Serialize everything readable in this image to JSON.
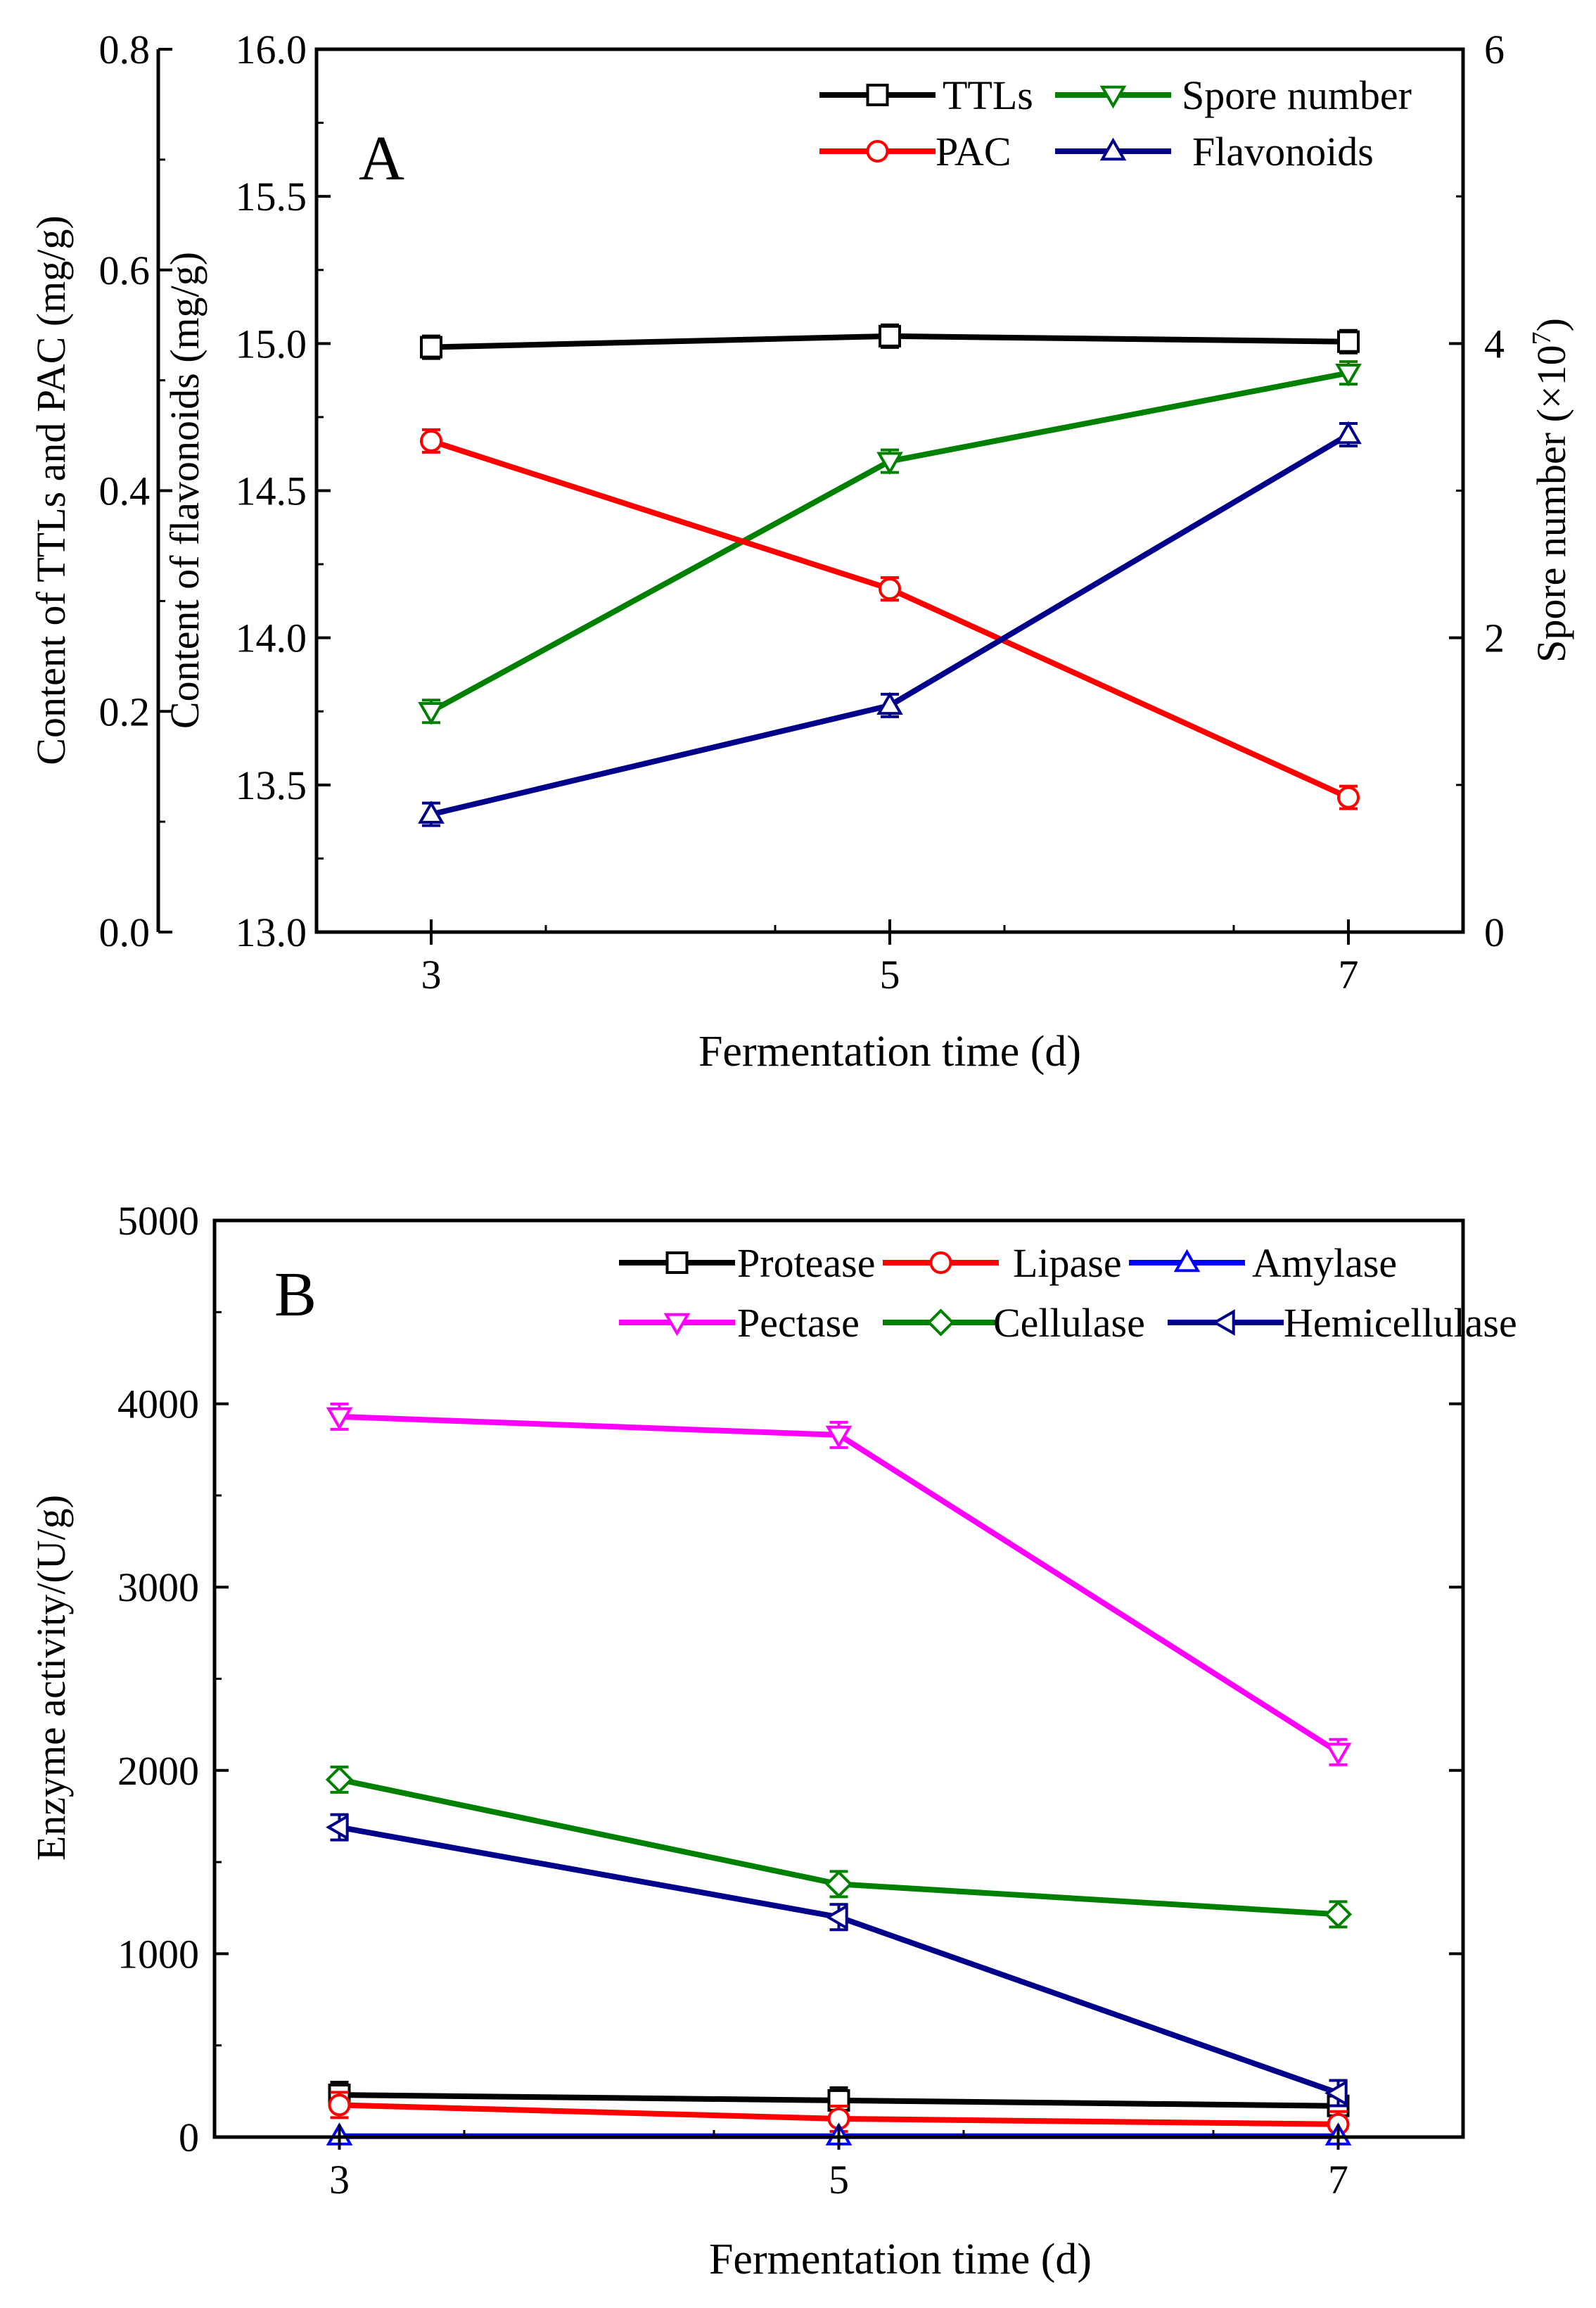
{
  "chart_data": [
    {
      "panel": "A",
      "type": "line",
      "panel_label": "A",
      "xlabel": "Fermentation time (d)",
      "x": [
        3,
        5,
        7
      ],
      "xlim": [
        2.5,
        7.5
      ],
      "xticks": [
        "3",
        "5",
        "7"
      ],
      "axes": {
        "left_outer": {
          "label": "Content of TTLs and PAC (mg/g)",
          "range": [
            0.0,
            0.8
          ],
          "ticks": [
            "0.0",
            "0.2",
            "0.4",
            "0.6",
            "0.8"
          ]
        },
        "left_inner": {
          "label": "Content of flavonoids (mg/g)",
          "range": [
            13.0,
            16.0
          ],
          "ticks": [
            "13.0",
            "13.5",
            "14.0",
            "14.5",
            "15.0",
            "15.5",
            "16.0"
          ]
        },
        "right": {
          "label": "Spore number (×10",
          "label_sup": "7",
          "label_end": ")",
          "range": [
            0,
            6
          ],
          "ticks": [
            "0",
            "2",
            "4",
            "6"
          ]
        }
      },
      "series": [
        {
          "name": "TTLs",
          "axis": "left_outer",
          "color": "#000000",
          "marker": "square",
          "values": [
            0.53,
            0.54,
            0.535
          ]
        },
        {
          "name": "Spore number",
          "axis": "right",
          "color": "#008000",
          "marker": "triangle-down",
          "values": [
            1.5,
            3.2,
            3.8
          ]
        },
        {
          "name": "PAC",
          "axis": "left_outer",
          "color": "#ff0000",
          "marker": "circle",
          "values": [
            0.445,
            0.311,
            0.122
          ]
        },
        {
          "name": "Flavonoids",
          "axis": "left_inner",
          "color": "#00008b",
          "marker": "triangle-up",
          "values": [
            13.4,
            13.77,
            14.69
          ]
        }
      ],
      "legend": [
        "TTLs",
        "Spore number",
        "PAC",
        "Flavonoids"
      ]
    },
    {
      "panel": "B",
      "type": "line",
      "panel_label": "B",
      "xlabel": "Fermentation time (d)",
      "ylabel": "Enzyme activity/(U/g)",
      "x": [
        3,
        5,
        7
      ],
      "xlim": [
        2.5,
        7.5
      ],
      "xticks": [
        "3",
        "5",
        "7"
      ],
      "ylim": [
        0,
        5000
      ],
      "yticks": [
        "0",
        "1000",
        "2000",
        "3000",
        "4000",
        "5000"
      ],
      "series": [
        {
          "name": "Protease",
          "color": "#000000",
          "marker": "square",
          "values": [
            230,
            200,
            170
          ]
        },
        {
          "name": "Lipase",
          "color": "#ff0000",
          "marker": "circle",
          "values": [
            175,
            100,
            70
          ]
        },
        {
          "name": "Amylase",
          "color": "#0000ff",
          "marker": "triangle-up",
          "values": [
            5,
            5,
            5
          ]
        },
        {
          "name": "Pectase",
          "color": "#ff00ff",
          "marker": "triangle-down",
          "values": [
            3930,
            3830,
            2100
          ]
        },
        {
          "name": "Cellulase",
          "color": "#008000",
          "marker": "diamond",
          "values": [
            1950,
            1380,
            1215
          ]
        },
        {
          "name": "Hemicellulase",
          "color": "#00008b",
          "marker": "triangle-left",
          "values": [
            1690,
            1200,
            240
          ]
        }
      ],
      "legend": [
        "Protease",
        "Lipase",
        "Amylase",
        "Pectase",
        "Cellulase",
        "Hemicellulase"
      ]
    }
  ]
}
